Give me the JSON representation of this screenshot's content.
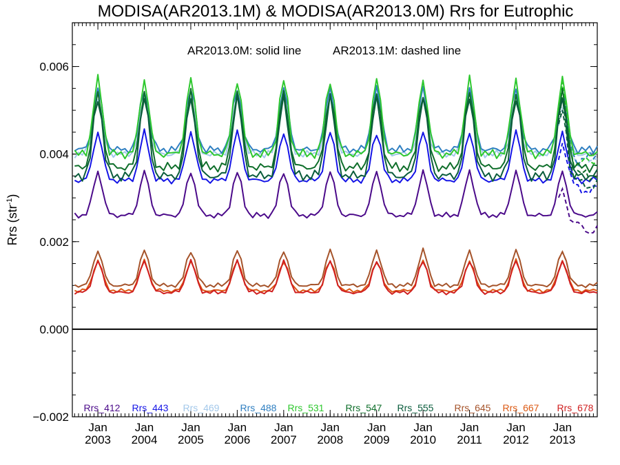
{
  "chart_data": {
    "type": "line",
    "title": "MODISA(AR2013.1M) & MODISA(AR2013.0M)  Rrs for Eutrophic",
    "annotation_solid": "AR2013.0M: solid line",
    "annotation_dashed": "AR2013.1M: dashed line",
    "ylabel_main": "Rrs (str",
    "ylabel_sup": "-1",
    "ylabel_end": ")",
    "ylim": [
      -0.002,
      0.007
    ],
    "xlim": [
      2002.45,
      2013.75
    ],
    "yticks": [
      {
        "value": -0.002,
        "label": "−0.002"
      },
      {
        "value": 0.0,
        "label": "0.000"
      },
      {
        "value": 0.002,
        "label": "0.002"
      },
      {
        "value": 0.004,
        "label": "0.004"
      },
      {
        "value": 0.006,
        "label": "0.006"
      }
    ],
    "xticks": [
      {
        "value": 2003,
        "month": "Jan",
        "year": "2003"
      },
      {
        "value": 2004,
        "month": "Jan",
        "year": "2004"
      },
      {
        "value": 2005,
        "month": "Jan",
        "year": "2005"
      },
      {
        "value": 2006,
        "month": "Jan",
        "year": "2006"
      },
      {
        "value": 2007,
        "month": "Jan",
        "year": "2007"
      },
      {
        "value": 2008,
        "month": "Jan",
        "year": "2008"
      },
      {
        "value": 2009,
        "month": "Jan",
        "year": "2009"
      },
      {
        "value": 2010,
        "month": "Jan",
        "year": "2010"
      },
      {
        "value": 2011,
        "month": "Jan",
        "year": "2011"
      },
      {
        "value": 2012,
        "month": "Jan",
        "year": "2012"
      },
      {
        "value": 2013,
        "month": "Jan",
        "year": "2013"
      }
    ],
    "zero_line": 0.0,
    "seasonal_model": {
      "start": 2002.5,
      "end": 2013.75,
      "step": 0.0833333,
      "dashed_start": 2012.9,
      "peak_date": 2013.0
    },
    "series": [
      {
        "name": "Rrs_412",
        "color": "#4b0a8a",
        "base": 0.0026,
        "amplitude": 0.001,
        "dashed_offset": -0.0003
      },
      {
        "name": "Rrs_443",
        "color": "#1414e6",
        "base": 0.0034,
        "amplitude": 0.0011,
        "dashed_offset": -0.0002
      },
      {
        "name": "Rrs_469",
        "color": "#a3c8ea",
        "base": 0.004,
        "amplitude": 0.0013,
        "dashed_offset": -0.0002
      },
      {
        "name": "Rrs_488",
        "color": "#2f7fc1",
        "base": 0.0041,
        "amplitude": 0.0014,
        "dashed_offset": -0.0002
      },
      {
        "name": "Rrs_531",
        "color": "#2ec82e",
        "base": 0.004,
        "amplitude": 0.0017,
        "dashed_offset": -0.0002
      },
      {
        "name": "Rrs_547",
        "color": "#0e6e2a",
        "base": 0.0037,
        "amplitude": 0.0017,
        "dashed_offset": -0.0002
      },
      {
        "name": "Rrs_555",
        "color": "#0a5c3c",
        "base": 0.0035,
        "amplitude": 0.0018,
        "dashed_offset": -0.0002
      },
      {
        "name": "Rrs_645",
        "color": "#a5532a",
        "base": 0.001,
        "amplitude": 0.0008,
        "dashed_offset": 0.0
      },
      {
        "name": "Rrs_667",
        "color": "#dc5a14",
        "base": 0.00088,
        "amplitude": 0.00068,
        "dashed_offset": 0.0
      },
      {
        "name": "Rrs_678",
        "color": "#d02020",
        "base": 0.00084,
        "amplitude": 0.00072,
        "dashed_offset": 0.0
      }
    ]
  }
}
